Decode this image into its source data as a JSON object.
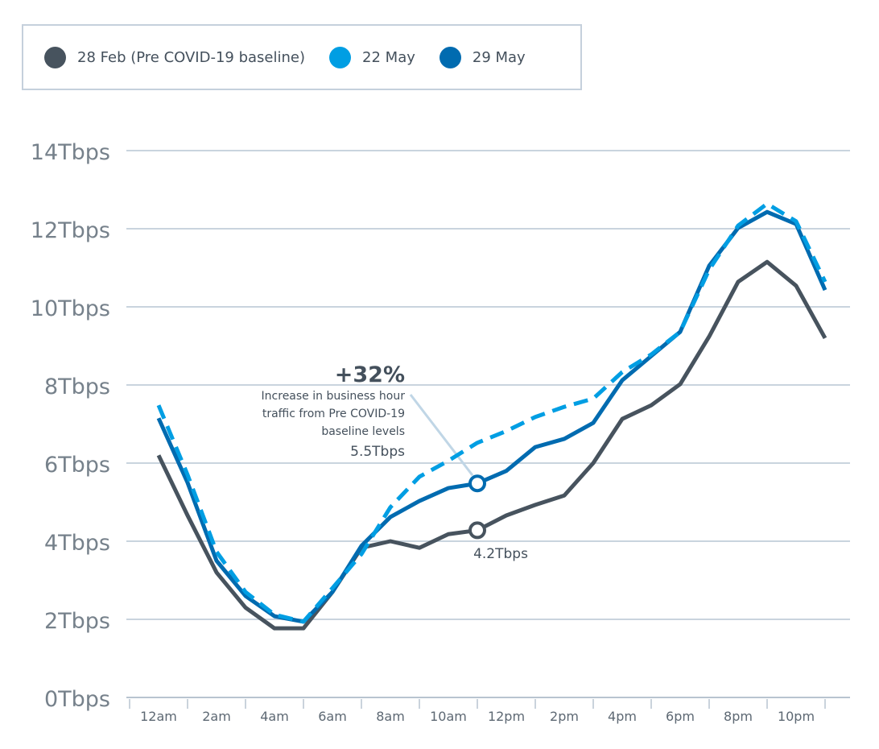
{
  "chart_data": {
    "type": "line",
    "x": [
      "12am",
      "1am",
      "2am",
      "3am",
      "4am",
      "5am",
      "6am",
      "7am",
      "8am",
      "9am",
      "10am",
      "11am",
      "12pm",
      "1pm",
      "2pm",
      "3pm",
      "4pm",
      "5pm",
      "6pm",
      "7pm",
      "8pm",
      "9pm",
      "10pm",
      "11pm"
    ],
    "x_tick_labels": [
      "12am",
      "2am",
      "4am",
      "6am",
      "8am",
      "10am",
      "12pm",
      "2pm",
      "4pm",
      "6pm",
      "8pm",
      "10pm"
    ],
    "y_tick_labels": [
      "0Tbps",
      "2Tbps",
      "4Tbps",
      "6Tbps",
      "8Tbps",
      "10Tbps",
      "12Tbps",
      "14Tbps"
    ],
    "ylim": [
      0,
      14
    ],
    "grid": "horizontal",
    "legend_placement": "top-left",
    "series": [
      {
        "name": "28 Feb (Pre COVID-19 baseline)",
        "color": "#47535e",
        "style": "solid",
        "values": [
          6.2,
          4.66,
          3.2,
          2.3,
          1.77,
          1.77,
          2.7,
          3.83,
          4.0,
          3.83,
          4.18,
          4.28,
          4.66,
          4.93,
          5.17,
          6.0,
          7.13,
          7.48,
          8.02,
          9.24,
          10.64,
          11.15,
          10.54,
          9.2
        ]
      },
      {
        "name": "22 May",
        "color": "#009ee3",
        "style": "dashed",
        "values": [
          7.48,
          5.7,
          3.73,
          2.7,
          2.12,
          1.94,
          2.8,
          3.67,
          4.87,
          5.65,
          6.06,
          6.52,
          6.82,
          7.18,
          7.44,
          7.65,
          8.33,
          8.78,
          9.36,
          10.95,
          12.08,
          12.64,
          12.19,
          10.64
        ]
      },
      {
        "name": "29 May",
        "color": "#006bb0",
        "style": "solid",
        "values": [
          7.15,
          5.5,
          3.5,
          2.6,
          2.08,
          1.94,
          2.7,
          3.88,
          4.62,
          5.03,
          5.36,
          5.48,
          5.8,
          6.41,
          6.62,
          7.03,
          8.12,
          8.74,
          9.36,
          11.05,
          12.02,
          12.43,
          12.12,
          10.43
        ]
      }
    ],
    "annotations": {
      "headline": "+32%",
      "lines": [
        "Increase in business hour",
        "traffic from Pre COVID-19",
        "baseline levels"
      ],
      "value_high": "5.5Tbps",
      "value_low": "4.2Tbps",
      "marker_hour_index": 11
    }
  }
}
